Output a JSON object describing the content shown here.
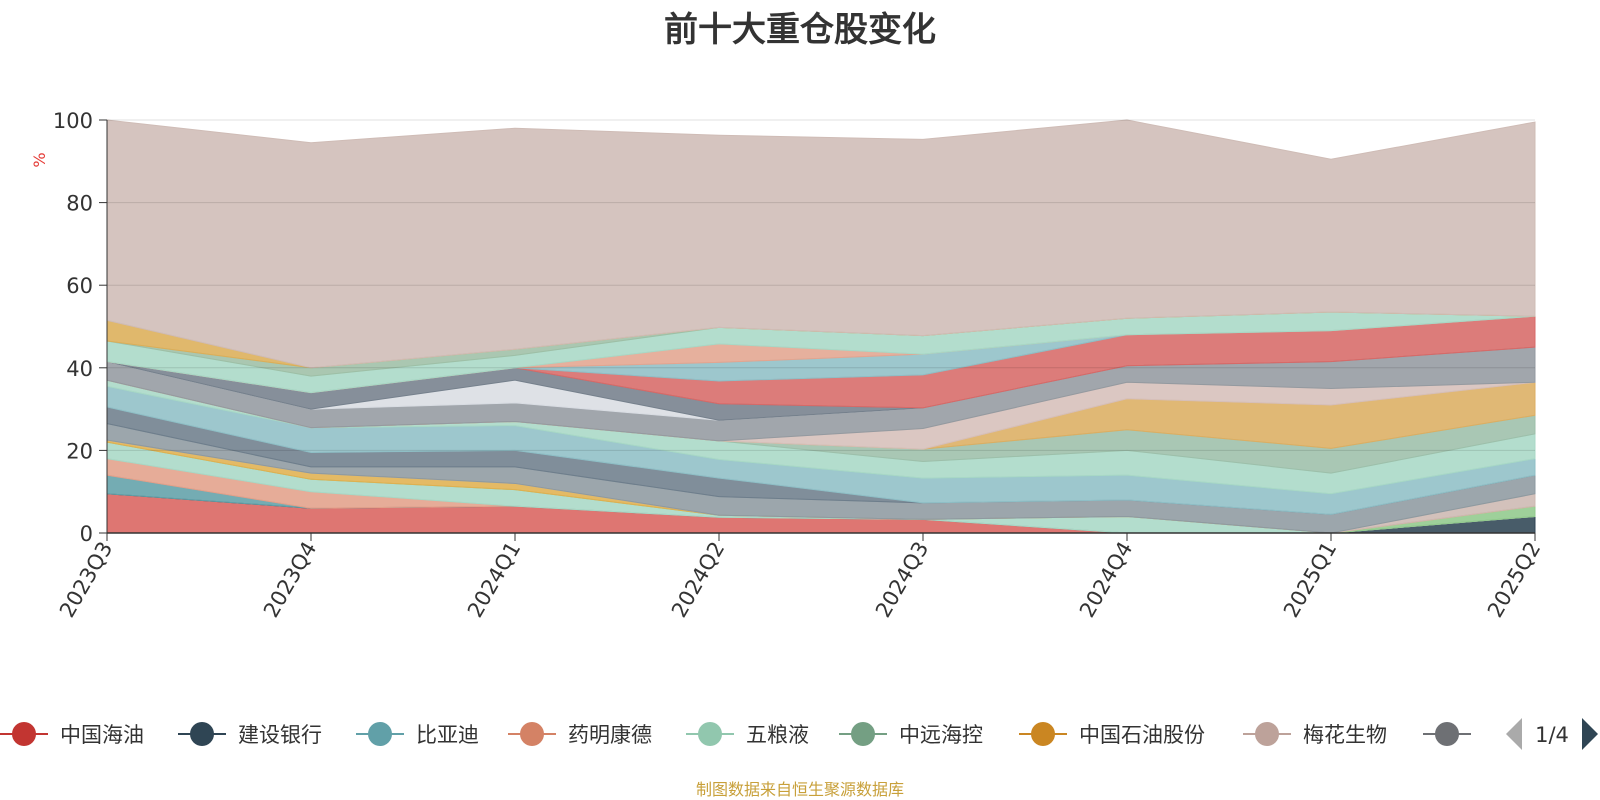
{
  "chart_data": {
    "type": "area",
    "title": "前十大重仓股变化",
    "ylabel": "%",
    "ylim": [
      0,
      100
    ],
    "yticks": [
      0,
      20,
      40,
      60,
      80,
      100
    ],
    "grid": true,
    "legend_position": "bottom",
    "categories": [
      "2023Q3",
      "2023Q4",
      "2024Q1",
      "2024Q2",
      "2024Q3",
      "2024Q4",
      "2025Q1",
      "2025Q2"
    ],
    "series": [
      {
        "name": "中国海油",
        "color": "#d9635f",
        "values": [
          9.5,
          6.0,
          6.5,
          3.8,
          3.3,
          0.0,
          0.0,
          0.0
        ]
      },
      {
        "name": "建设银行",
        "color": "#2f4554",
        "values": [
          0,
          0,
          0,
          0,
          0,
          0,
          0,
          4.0
        ]
      },
      {
        "name": "比亚迪",
        "color": "#61a0a8",
        "values": [
          4.5,
          0,
          0,
          0,
          0,
          0,
          0,
          0
        ]
      },
      {
        "name": "药明康德",
        "color": "#e3a08a",
        "values": [
          4.0,
          4.0,
          0,
          0,
          0,
          0,
          0,
          0
        ]
      },
      {
        "name": "五粮液",
        "color": "#a8d8c6",
        "values": [
          4.0,
          3.0,
          4.0,
          0.5,
          0,
          4.0,
          0,
          0
        ]
      },
      {
        "name": "中远海控",
        "color": "#91ca8c",
        "values": [
          0,
          0,
          0,
          0,
          0,
          0,
          0,
          2.5
        ]
      },
      {
        "name": "中国石油股份",
        "color": "#e0b050",
        "values": [
          0.5,
          1.5,
          1.5,
          0,
          0,
          0,
          0,
          0
        ]
      },
      {
        "name": "梅花生物",
        "color": "#cdb8b2",
        "values": [
          0,
          0,
          0,
          0,
          0,
          0,
          0,
          3.0
        ]
      },
      {
        "name": "",
        "color": "#8e9aa0",
        "values": [
          4.0,
          1.5,
          4.0,
          4.5,
          4.0,
          4.0,
          4.5,
          4.5
        ]
      },
      {
        "name": "",
        "color": "#6e7e8c",
        "values": [
          4.0,
          3.5,
          4.0,
          4.5,
          0,
          0,
          0,
          0
        ]
      },
      {
        "name": "",
        "color": "#8fbfc6",
        "values": [
          5.0,
          6.0,
          6.0,
          4.5,
          6.0,
          6.0,
          5.0,
          4.0
        ]
      },
      {
        "name": "",
        "color": "#a8d8c6",
        "values": [
          1.5,
          0,
          1.0,
          4.5,
          4.0,
          6.0,
          5.0,
          6.0
        ]
      },
      {
        "name": "",
        "color": "#9dbfaa",
        "values": [
          0,
          0,
          0,
          0,
          3.0,
          5.0,
          6.0,
          4.5
        ]
      },
      {
        "name": "",
        "color": "#dcae62",
        "values": [
          0,
          0,
          0,
          0,
          0,
          7.5,
          10.5,
          8.0
        ]
      },
      {
        "name": "",
        "color": "#d6bfb9",
        "values": [
          0,
          0,
          0,
          0,
          5.0,
          4.0,
          4.0,
          0
        ]
      },
      {
        "name": "",
        "color": "#949aa0",
        "values": [
          4.5,
          4.5,
          4.5,
          5.0,
          5.0,
          4.0,
          6.5,
          8.5
        ]
      },
      {
        "name": "",
        "color": "#d9dde3",
        "values": [
          0,
          0,
          5.5,
          0,
          0,
          0,
          0,
          0
        ]
      },
      {
        "name": "",
        "color": "#75808c",
        "values": [
          0,
          4.0,
          3.0,
          4.0,
          0,
          0,
          0,
          0
        ]
      },
      {
        "name": "",
        "color": "#d76a68",
        "values": [
          0,
          0,
          0,
          5.5,
          8.0,
          7.5,
          7.5,
          7.5
        ]
      },
      {
        "name": "",
        "color": "#8fbfc6",
        "values": [
          0,
          0,
          0,
          4.5,
          5.0,
          0,
          0,
          0
        ]
      },
      {
        "name": "",
        "color": "#e3a590",
        "values": [
          0,
          0,
          0,
          4.5,
          0,
          0,
          0,
          0
        ]
      },
      {
        "name": "",
        "color": "#a8d8c6",
        "values": [
          5.0,
          4.0,
          3.0,
          4.0,
          4.5,
          4.0,
          4.5,
          0
        ]
      },
      {
        "name": "",
        "color": "#9ebfa6",
        "values": [
          0,
          2.0,
          1.5,
          0,
          0,
          0,
          0,
          0
        ]
      },
      {
        "name": "",
        "color": "#dcae58",
        "values": [
          5.0,
          0,
          0,
          0,
          0,
          0,
          0,
          0
        ]
      },
      {
        "name": "",
        "color": "#cfbcb6",
        "values": [
          48.5,
          54.5,
          53.5,
          46.5,
          47.5,
          48.0,
          37.0,
          47.0
        ]
      }
    ]
  },
  "legend": {
    "items": [
      {
        "label": "中国海油",
        "color": "#c23531"
      },
      {
        "label": "建设银行",
        "color": "#2f4554"
      },
      {
        "label": "比亚迪",
        "color": "#61a0a8"
      },
      {
        "label": "药明康德",
        "color": "#d48265"
      },
      {
        "label": "五粮液",
        "color": "#91c7ae"
      },
      {
        "label": "中远海控",
        "color": "#749f83"
      },
      {
        "label": "中国石油股份",
        "color": "#ca8622"
      },
      {
        "label": "梅花生物",
        "color": "#bda29a"
      },
      {
        "label": "",
        "color": "#6e7074"
      }
    ],
    "page": "1/4"
  },
  "source_note": "制图数据来自恒生聚源数据库",
  "colors": {
    "axis": "#333333",
    "grid": "#cccccc",
    "ylabel": "#e53935",
    "pager_inactive": "#aaaaaa",
    "pager_active": "#2f4554"
  }
}
